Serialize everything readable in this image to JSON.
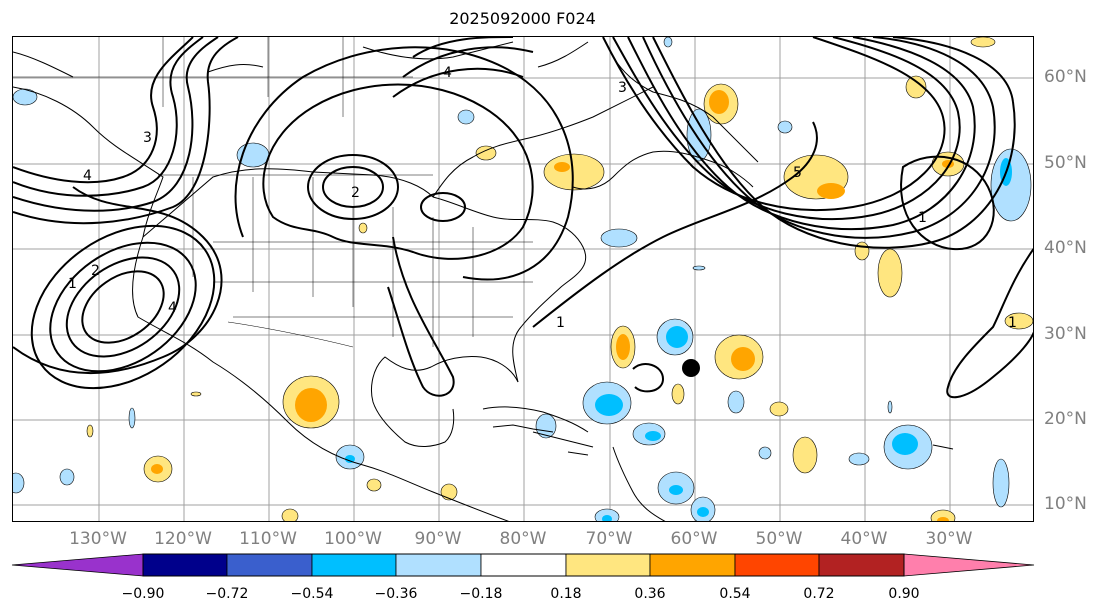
{
  "title": "2025092000 F024",
  "lat_labels": [
    "60°N",
    "50°N",
    "40°N",
    "30°N",
    "20°N",
    "10°N"
  ],
  "lon_labels": [
    "130°W",
    "120°W",
    "110°W",
    "100°W",
    "90°W",
    "80°W",
    "70°W",
    "60°W",
    "50°W",
    "40°W",
    "30°W"
  ],
  "contour_labels": [
    "1",
    "2",
    "3",
    "4",
    "5"
  ],
  "colorbar": {
    "ticks": [
      "−0.90",
      "−0.72",
      "−0.54",
      "−0.36",
      "−0.18",
      "0.18",
      "0.36",
      "0.54",
      "0.72",
      "0.90"
    ],
    "colors": [
      "#9932cc",
      "#00008b",
      "#3a5fcd",
      "#00bfff",
      "#b0e0ff",
      "#ffffff",
      "#ffe680",
      "#ffa500",
      "#ff4500",
      "#b22222",
      "#ff7fac"
    ]
  },
  "marker": "storm-center"
}
